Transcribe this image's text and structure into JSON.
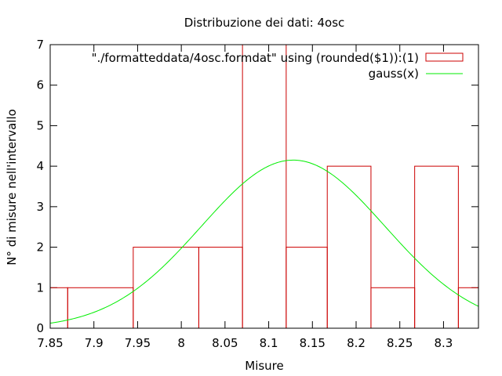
{
  "chart_data": {
    "type": "bar",
    "title": "Distribuzione dei dati: 4osc",
    "xlabel": "Misure",
    "ylabel": "N° di misure nell'intervallo",
    "xlim": [
      7.85,
      8.34
    ],
    "ylim": [
      0,
      7
    ],
    "xticks": [
      "7.85",
      "7.9",
      "7.95",
      "8",
      "8.05",
      "8.1",
      "8.15",
      "8.2",
      "8.25",
      "8.3"
    ],
    "yticks": [
      "0",
      "1",
      "2",
      "3",
      "4",
      "5",
      "6",
      "7"
    ],
    "grid": false,
    "legend_position": "top-right",
    "series": [
      {
        "name": "\"./formatteddata/4osc.formdat\" using (rounded($1)):(1)",
        "type": "histogram",
        "color": "#cc0000",
        "bins": [
          {
            "x0": 7.85,
            "x1": 7.87,
            "value": 1
          },
          {
            "x0": 7.87,
            "x1": 7.945,
            "value": 1
          },
          {
            "x0": 7.945,
            "x1": 8.02,
            "value": 2
          },
          {
            "x0": 8.02,
            "x1": 8.07,
            "value": 2
          },
          {
            "x0": 8.07,
            "x1": 8.12,
            "value": 7
          },
          {
            "x0": 8.12,
            "x1": 8.167,
            "value": 2
          },
          {
            "x0": 8.167,
            "x1": 8.217,
            "value": 4
          },
          {
            "x0": 8.217,
            "x1": 8.267,
            "value": 1
          },
          {
            "x0": 8.267,
            "x1": 8.317,
            "value": 4
          },
          {
            "x0": 8.317,
            "x1": 8.34,
            "value": 1
          }
        ]
      },
      {
        "name": "gauss(x)",
        "type": "line",
        "color": "#00ee00",
        "gaussian": {
          "amplitude": 4.15,
          "mean": 8.128,
          "sigma": 0.105
        }
      }
    ]
  }
}
